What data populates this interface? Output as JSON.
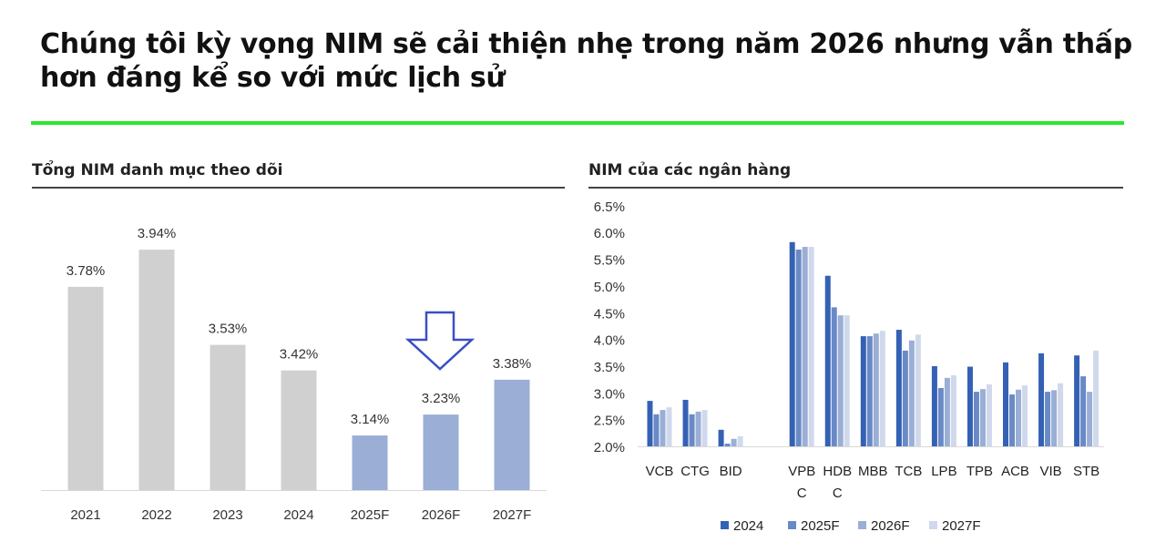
{
  "title": "Chúng tôi kỳ vọng NIM sẽ cải thiện nhẹ trong năm 2026 nhưng vẫn thấp hơn đáng kể so với mức lịch sử",
  "accent_color": "#2ee52e",
  "chart_data": [
    {
      "type": "bar",
      "title": "Tổng NIM danh mục theo dõi",
      "categories": [
        "2021",
        "2022",
        "2023",
        "2024",
        "2025F",
        "2026F",
        "2027F"
      ],
      "values": [
        3.78,
        3.94,
        3.53,
        3.42,
        3.14,
        3.23,
        3.38
      ],
      "data_labels": [
        "3.78%",
        "3.94%",
        "3.53%",
        "3.42%",
        "3.14%",
        "3.23%",
        "3.38%"
      ],
      "colors": {
        "actual": "#d0d0d0",
        "forecast": "#9aaed6"
      },
      "annotation": "down-arrow-icon above 2026F",
      "grid": false
    },
    {
      "type": "bar",
      "title": "NIM của các ngân hàng",
      "categories": [
        [
          "VCB"
        ],
        [
          "CTG"
        ],
        [
          "BID"
        ],
        [],
        [
          "VPB",
          "C"
        ],
        [
          "HDB",
          "C"
        ],
        [
          "MBB"
        ],
        [
          "TCB"
        ],
        [
          "LPB"
        ],
        [
          "TPB"
        ],
        [
          "ACB"
        ],
        [
          "VIB"
        ],
        [
          "STB"
        ]
      ],
      "yticks": [
        "2.0%",
        "2.5%",
        "3.0%",
        "3.5%",
        "4.0%",
        "4.5%",
        "5.0%",
        "5.5%",
        "6.0%",
        "6.5%"
      ],
      "ylim": [
        2.0,
        6.5
      ],
      "legend_position": "bottom",
      "grid": false,
      "series": [
        {
          "name": "2024",
          "color": "#3461b4",
          "values": [
            2.85,
            2.87,
            2.31,
            null,
            5.82,
            5.19,
            4.06,
            4.18,
            3.5,
            3.49,
            3.57,
            3.74,
            3.7
          ]
        },
        {
          "name": "2025F",
          "color": "#6a8ac6",
          "values": [
            2.6,
            2.6,
            2.05,
            null,
            5.68,
            4.6,
            4.06,
            3.79,
            3.09,
            3.02,
            2.97,
            3.02,
            3.31
          ]
        },
        {
          "name": "2026F",
          "color": "#9aaed6",
          "values": [
            2.68,
            2.65,
            2.14,
            null,
            5.73,
            4.45,
            4.11,
            3.98,
            3.28,
            3.07,
            3.06,
            3.05,
            3.02
          ]
        },
        {
          "name": "2027F",
          "color": "#d0d9ec",
          "values": [
            2.73,
            2.68,
            2.19,
            null,
            5.73,
            4.45,
            4.16,
            4.09,
            3.33,
            3.16,
            3.14,
            3.18,
            3.79
          ]
        }
      ]
    }
  ]
}
